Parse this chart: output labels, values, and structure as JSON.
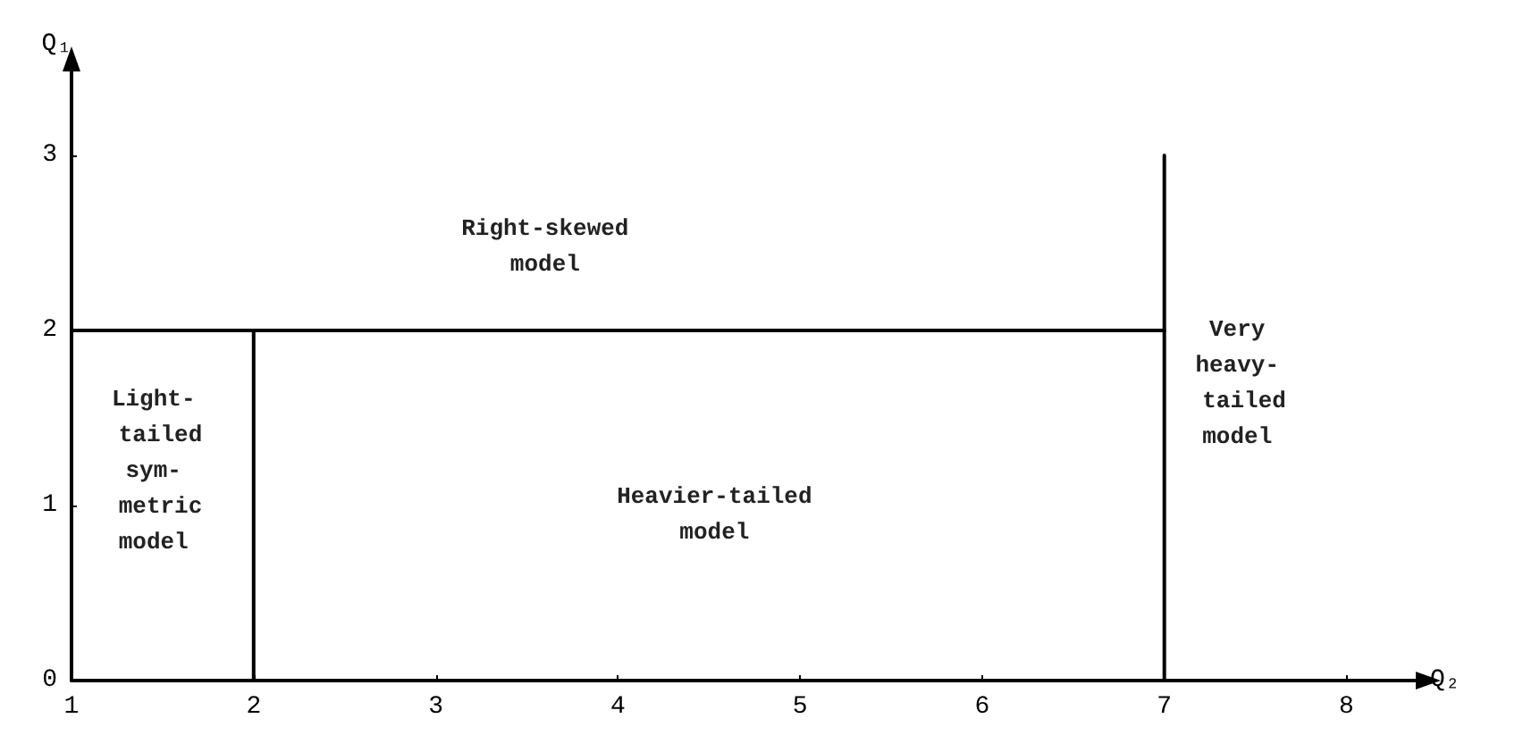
{
  "chart_data": {
    "type": "line",
    "xlabel": "Q₂",
    "ylabel": "Q₁",
    "xlim": [
      1,
      8.4
    ],
    "ylim": [
      0,
      3.5
    ],
    "xticks": [
      1,
      2,
      3,
      4,
      5,
      6,
      7,
      8
    ],
    "yticks": [
      0,
      1,
      2,
      3
    ],
    "grid": false,
    "marker": "none",
    "line_style": "solid",
    "series": [
      {
        "color": "#000000",
        "x": [
          1,
          7
        ],
        "values": [
          2,
          2
        ]
      },
      {
        "color": "#000000",
        "x": [
          2,
          2
        ],
        "values": [
          0,
          2
        ]
      },
      {
        "color": "#000000",
        "x": [
          7,
          7
        ],
        "values": [
          0,
          3
        ]
      }
    ],
    "annotations": [
      "Right-skewed\nmodel",
      "Light-\n tailed\nsym-\n metric\nmodel",
      "Heavier-tailed\nmodel",
      "Very\nheavy-\n tailed\nmodel"
    ]
  }
}
